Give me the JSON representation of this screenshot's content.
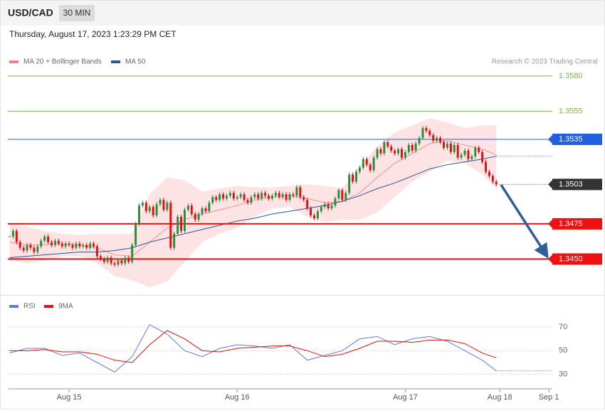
{
  "header": {
    "symbol": "USD/CAD",
    "interval": "30 MIN",
    "timestamp": "Thursday, August 17, 2023 1:23:29 PM CET"
  },
  "chart_data": [
    {
      "type": "candlestick",
      "credit": "Research © 2023 Trading Central",
      "up_color": "#2e8b3e",
      "down_color": "#e01010",
      "close": [
        1.3466,
        1.347,
        1.3462,
        1.3458,
        1.3456,
        1.346,
        1.3458,
        1.3455,
        1.3459,
        1.3463,
        1.3466,
        1.3462,
        1.346,
        1.3463,
        1.3461,
        1.3459,
        1.3461,
        1.346,
        1.3458,
        1.3461,
        1.3459,
        1.346,
        1.3458,
        1.3461,
        1.3459,
        1.3452,
        1.345,
        1.3448,
        1.3451,
        1.3447,
        1.3446,
        1.3449,
        1.3447,
        1.3451,
        1.3448,
        1.346,
        1.3475,
        1.3488,
        1.349,
        1.3484,
        1.3487,
        1.3481,
        1.3489,
        1.3492,
        1.3485,
        1.349,
        1.3458,
        1.3468,
        1.348,
        1.347,
        1.3485,
        1.3488,
        1.3482,
        1.3478,
        1.3482,
        1.3486,
        1.3484,
        1.349,
        1.3494,
        1.3492,
        1.3496,
        1.3493,
        1.3495,
        1.3497,
        1.3493,
        1.3494,
        1.3496,
        1.3492,
        1.349,
        1.3494,
        1.3496,
        1.3493,
        1.3497,
        1.3495,
        1.3493,
        1.3495,
        1.3497,
        1.3494,
        1.3496,
        1.3492,
        1.3496,
        1.3495,
        1.3501,
        1.3494,
        1.3492,
        1.3486,
        1.3481,
        1.3479,
        1.3484,
        1.3487,
        1.3489,
        1.3486,
        1.3488,
        1.3493,
        1.3499,
        1.3492,
        1.3497,
        1.351,
        1.3505,
        1.3512,
        1.3515,
        1.3521,
        1.3517,
        1.3513,
        1.3522,
        1.3528,
        1.3525,
        1.3533,
        1.353,
        1.3527,
        1.3525,
        1.3528,
        1.3522,
        1.3526,
        1.3531,
        1.3527,
        1.3532,
        1.3536,
        1.3543,
        1.3541,
        1.3538,
        1.3534,
        1.3536,
        1.3533,
        1.3529,
        1.3532,
        1.3526,
        1.3531,
        1.3522,
        1.3524,
        1.3527,
        1.3521,
        1.3523,
        1.3529,
        1.3526,
        1.3519,
        1.3512,
        1.3509,
        1.3505,
        1.3503
      ],
      "xlim": [
        -0.5,
        155
      ],
      "ylim": [
        1.3427,
        1.3586
      ],
      "series": [
        {
          "name": "MA 20 + Bollinger Bands",
          "color": "#f08080",
          "band_color": "#fde3e3",
          "x": [
            0,
            5,
            10,
            15,
            20,
            25,
            30,
            35,
            40,
            45,
            50,
            55,
            60,
            65,
            70,
            75,
            80,
            85,
            90,
            95,
            100,
            105,
            110,
            115,
            120,
            125,
            130,
            135,
            139
          ],
          "values": [
            1.3462,
            1.346,
            1.346,
            1.3461,
            1.346,
            1.3458,
            1.3453,
            1.3452,
            1.3462,
            1.3472,
            1.3478,
            1.3482,
            1.3485,
            1.3488,
            1.3492,
            1.3494,
            1.3495,
            1.3493,
            1.349,
            1.3491,
            1.3497,
            1.3508,
            1.3518,
            1.3525,
            1.3532,
            1.3534,
            1.3531,
            1.3528,
            1.3524
          ],
          "upper": [
            1.3475,
            1.3473,
            1.347,
            1.3468,
            1.3467,
            1.3468,
            1.3468,
            1.3468,
            1.3496,
            1.3508,
            1.3506,
            1.3498,
            1.35,
            1.3502,
            1.3501,
            1.3501,
            1.3502,
            1.3503,
            1.3502,
            1.35,
            1.3516,
            1.353,
            1.354,
            1.3545,
            1.355,
            1.3547,
            1.3543,
            1.3545,
            1.3545
          ],
          "lower": [
            1.3449,
            1.3447,
            1.3449,
            1.3452,
            1.3452,
            1.3447,
            1.3438,
            1.3435,
            1.343,
            1.3434,
            1.3448,
            1.3462,
            1.3468,
            1.3472,
            1.348,
            1.3486,
            1.3487,
            1.348,
            1.3476,
            1.3478,
            1.3478,
            1.3483,
            1.3494,
            1.3505,
            1.3512,
            1.352,
            1.3518,
            1.351,
            1.35
          ]
        },
        {
          "name": "MA 50",
          "color": "#2f5597",
          "x": [
            0,
            5,
            10,
            15,
            20,
            25,
            30,
            35,
            40,
            45,
            50,
            55,
            60,
            65,
            70,
            75,
            80,
            85,
            90,
            95,
            100,
            105,
            110,
            115,
            120,
            125,
            130,
            135,
            139
          ],
          "values": [
            1.3451,
            1.3452,
            1.3453,
            1.3454,
            1.3455,
            1.3455,
            1.3456,
            1.3458,
            1.3462,
            1.3465,
            1.3468,
            1.3471,
            1.3474,
            1.3477,
            1.3479,
            1.3482,
            1.3484,
            1.3486,
            1.3488,
            1.3491,
            1.3495,
            1.35,
            1.3504,
            1.3509,
            1.3514,
            1.3517,
            1.3519,
            1.3521,
            1.3523
          ]
        }
      ],
      "levels": [
        {
          "value": 1.358,
          "label": "1.3580",
          "color": "#7cb342",
          "boxed": false
        },
        {
          "value": 1.3555,
          "label": "1.3555",
          "color": "#7cb342",
          "boxed": false
        },
        {
          "value": 1.3535,
          "label": "1.3535",
          "color": "#1f5fe0",
          "boxed": true
        },
        {
          "value": 1.3503,
          "label": "1.3503",
          "color": "#333333",
          "boxed": true
        },
        {
          "value": 1.3475,
          "label": "1.3475",
          "color": "#ee1111",
          "boxed": true
        },
        {
          "value": 1.345,
          "label": "1.3450",
          "color": "#ee1111",
          "boxed": true
        }
      ]
    },
    {
      "type": "line",
      "xlim": [
        -0.5,
        155
      ],
      "ylim": [
        22,
        94
      ],
      "yticks": [
        30,
        50,
        70
      ],
      "xticks": [
        {
          "value": 17,
          "label": "Aug 15"
        },
        {
          "value": 65,
          "label": "Aug 16"
        },
        {
          "value": 113,
          "label": "Aug 17"
        },
        {
          "value": 140,
          "label": "Aug 18"
        },
        {
          "value": 154,
          "label": "Sep 1"
        }
      ],
      "series": [
        {
          "name": "RSI",
          "color": "#5b7fd6",
          "x": [
            0,
            5,
            10,
            15,
            20,
            25,
            30,
            35,
            40,
            45,
            50,
            55,
            60,
            65,
            70,
            75,
            80,
            85,
            90,
            95,
            100,
            105,
            110,
            115,
            120,
            125,
            130,
            135,
            139
          ],
          "values": [
            48,
            52,
            52,
            46,
            48,
            40,
            32,
            45,
            72,
            64,
            50,
            45,
            52,
            55,
            54,
            52,
            55,
            42,
            46,
            50,
            60,
            62,
            55,
            60,
            62,
            58,
            50,
            42,
            33
          ]
        },
        {
          "name": "9MA",
          "color": "#e01010",
          "x": [
            0,
            5,
            10,
            15,
            20,
            25,
            30,
            35,
            40,
            45,
            50,
            55,
            60,
            65,
            70,
            75,
            80,
            85,
            90,
            95,
            100,
            105,
            110,
            115,
            120,
            125,
            130,
            135,
            139
          ],
          "values": [
            50,
            50,
            51,
            49,
            49,
            47,
            42,
            40,
            55,
            67,
            60,
            50,
            49,
            52,
            53,
            54,
            54,
            50,
            45,
            47,
            52,
            58,
            58,
            57,
            59,
            59,
            56,
            48,
            44
          ]
        }
      ]
    }
  ]
}
